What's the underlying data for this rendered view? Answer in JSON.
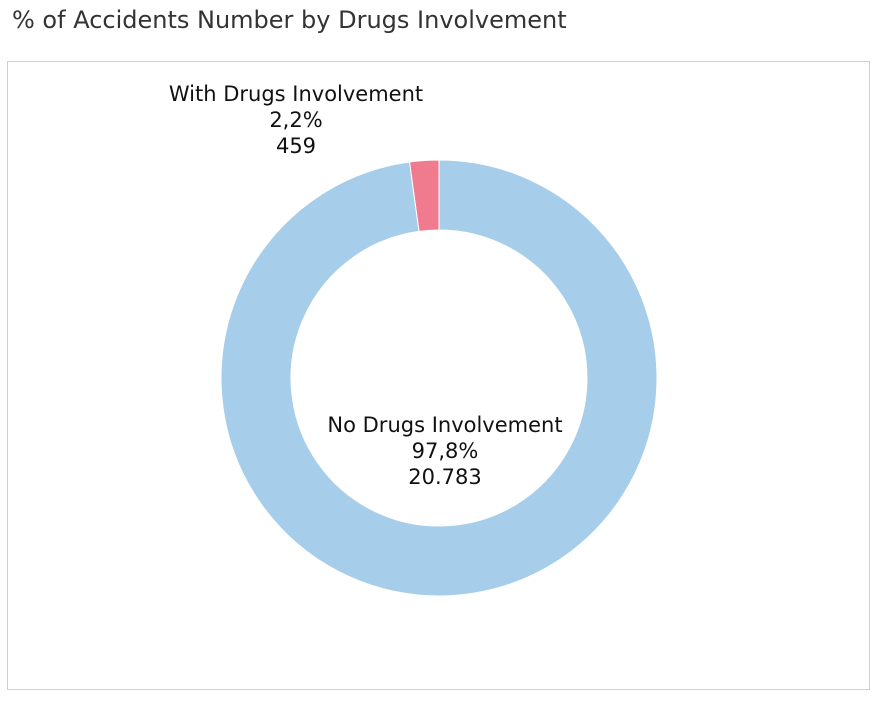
{
  "title": "% of Accidents Number by Drugs Involvement",
  "chart_data": {
    "type": "pie",
    "donut": true,
    "title": "% of Accidents Number by Drugs Involvement",
    "slices": [
      {
        "name": "With Drugs Involvement",
        "percent_label": "2,2%",
        "value_label": "459",
        "value": 459,
        "percent": 2.2,
        "color": "#f07a8e"
      },
      {
        "name": "No Drugs Involvement",
        "percent_label": "97,8%",
        "value_label": "20.783",
        "value": 20783,
        "percent": 97.8,
        "color": "#a6cde9"
      }
    ]
  }
}
